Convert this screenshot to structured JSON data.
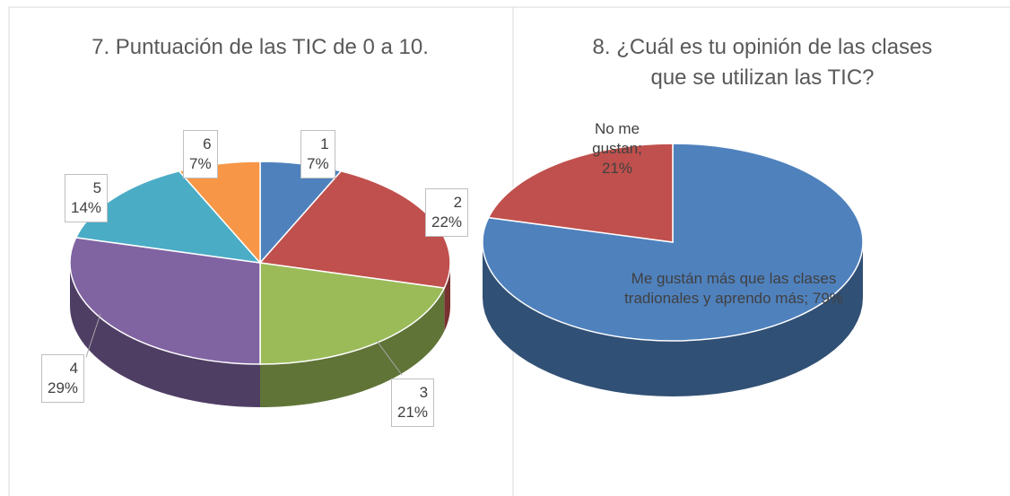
{
  "chart_data": [
    {
      "type": "pie3d",
      "title": "7. Puntuación de las TIC de 0 a 10.",
      "categories": [
        "1",
        "2",
        "3",
        "4",
        "5",
        "6"
      ],
      "values": [
        7,
        22,
        21,
        29,
        14,
        7
      ],
      "value_labels": [
        "7%",
        "22%",
        "21%",
        "29%",
        "14%",
        "7%"
      ],
      "colors": [
        "#4f81bd",
        "#c0504d",
        "#9bbb59",
        "#8064a2",
        "#4bacc6",
        "#f79646"
      ]
    },
    {
      "type": "pie3d",
      "title": "8. ¿Cuál es tu opinión de las clases que se utilizan las TIC?",
      "categories": [
        "Me gustán más que las clases tradionales y aprendo más",
        "No me gustan"
      ],
      "values": [
        79,
        21
      ],
      "value_labels": [
        "79%",
        "21%"
      ],
      "label_separator": "; ",
      "colors": [
        "#4f81bd",
        "#c0504d"
      ]
    }
  ]
}
